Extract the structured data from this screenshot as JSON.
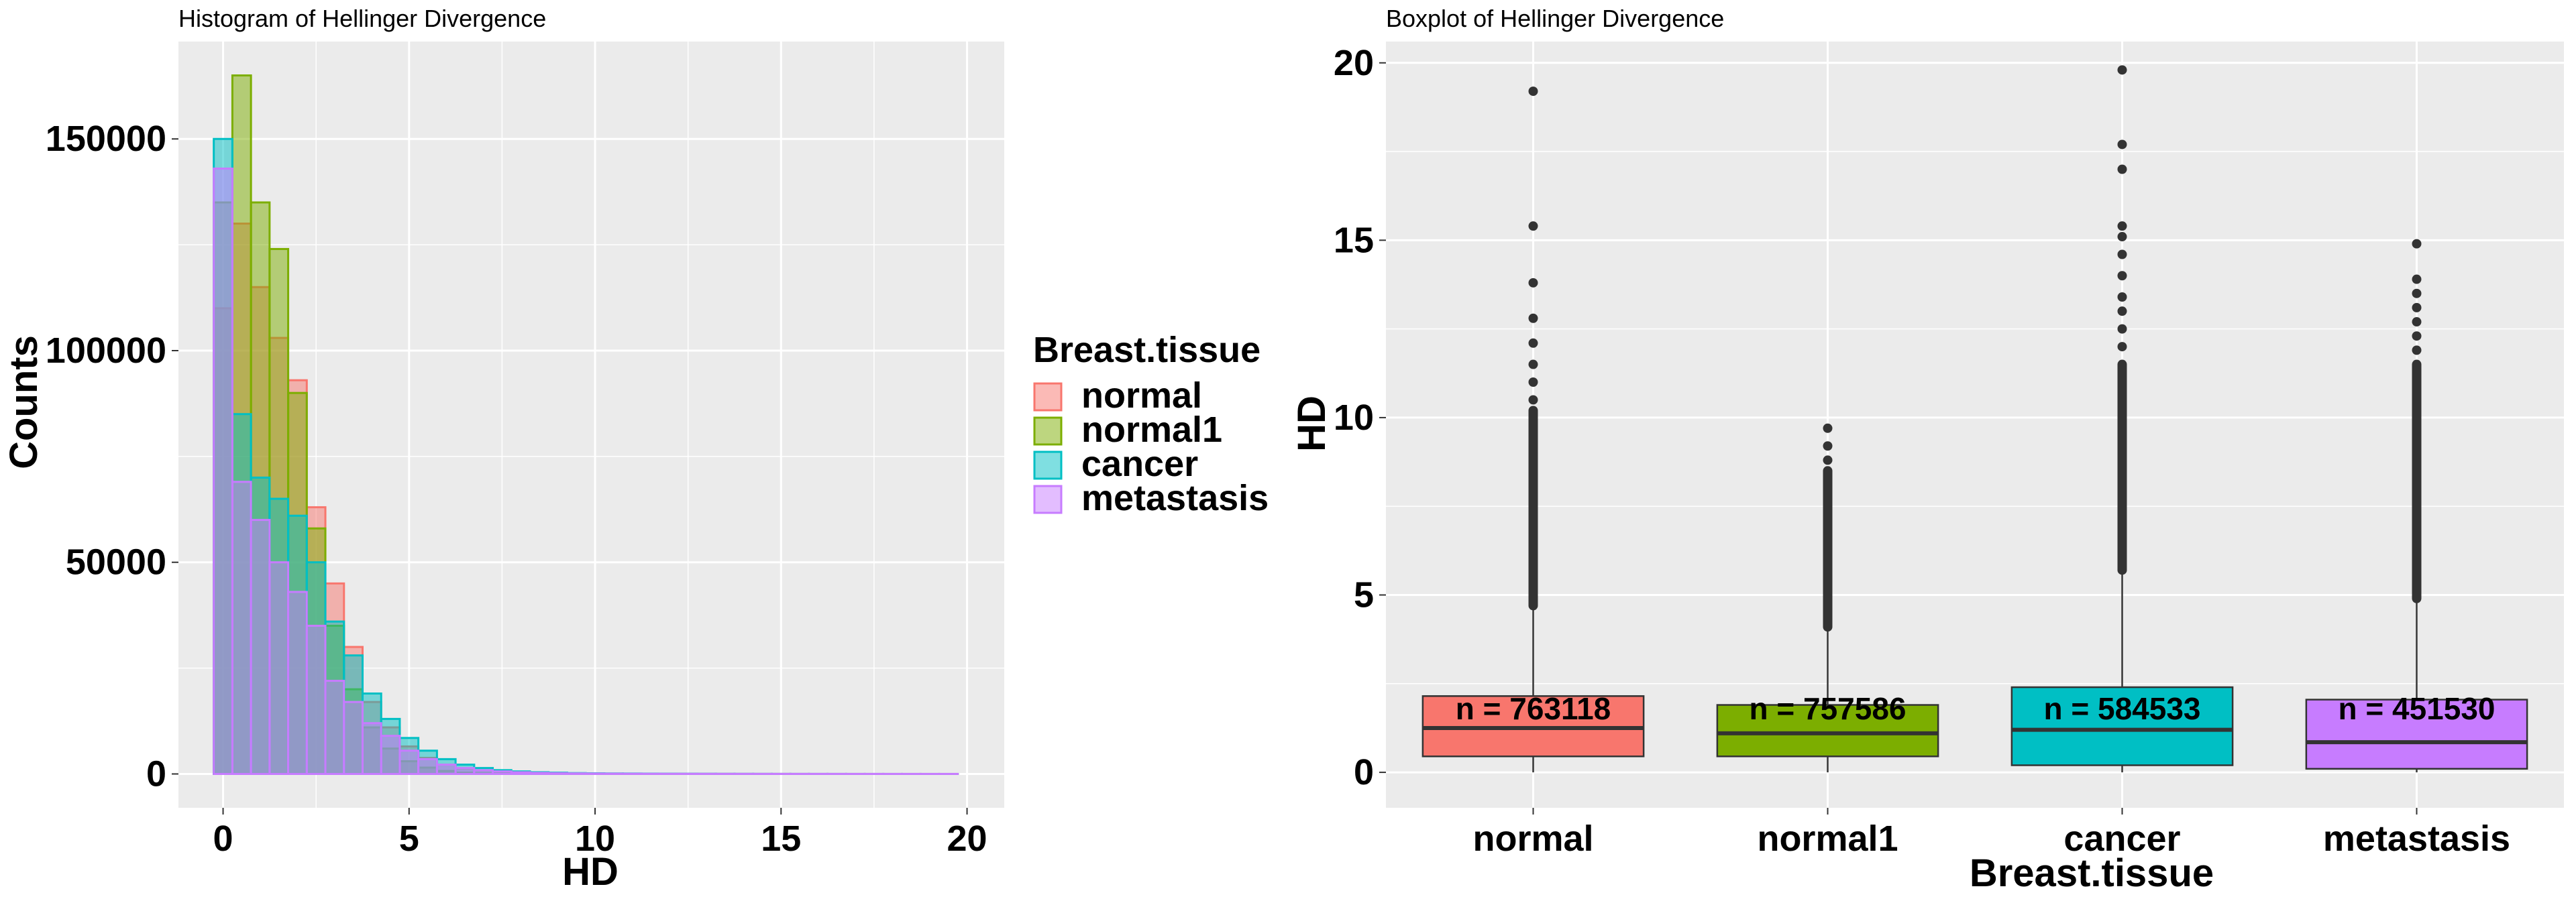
{
  "colors": {
    "normal": "#F8766D",
    "normal1": "#7CAE00",
    "cancer": "#00BFC4",
    "metastasis": "#C77CFF",
    "panel_bg": "#EBEBEB",
    "grid": "#FFFFFF",
    "outlier": "#333333"
  },
  "chart_data": [
    {
      "type": "histogram",
      "title": "Histogram of Hellinger Divergence",
      "xlabel": "HD",
      "ylabel": "Counts",
      "xlim": [
        -1.2,
        21
      ],
      "ylim": [
        -8000,
        173000
      ],
      "xticks": [
        0,
        5,
        10,
        15,
        20
      ],
      "xtick_labels": [
        "0",
        "5",
        "10",
        "15",
        "20"
      ],
      "yticks": [
        0,
        50000,
        100000,
        150000
      ],
      "ytick_labels": [
        "0",
        "50000",
        "100000",
        "150000"
      ],
      "grid": true,
      "bin_width": 0.5,
      "bin_centers": [
        0,
        0.5,
        1,
        1.5,
        2,
        2.5,
        3,
        3.5,
        4,
        4.5,
        5,
        5.5,
        6,
        6.5,
        7,
        7.5,
        8,
        8.5,
        9,
        9.5,
        10,
        10.5,
        11,
        11.5,
        12,
        12.5,
        13,
        13.5,
        14,
        14.5,
        15,
        15.5,
        16,
        16.5,
        17,
        17.5,
        18,
        18.5,
        19,
        19.5
      ],
      "legend": {
        "title": "Breast.tissue",
        "position": "right",
        "entries": [
          "normal",
          "normal1",
          "cancer",
          "metastasis"
        ]
      },
      "series": [
        {
          "name": "normal",
          "values": [
            110000,
            130000,
            115000,
            103000,
            93000,
            63000,
            45000,
            30000,
            17000,
            11000,
            6500,
            3800,
            2200,
            1300,
            800,
            500,
            300,
            200,
            150,
            120,
            100,
            80,
            60,
            50,
            40,
            30,
            25,
            20,
            15,
            12,
            10,
            8,
            6,
            5,
            4,
            3,
            2,
            2,
            1,
            1
          ]
        },
        {
          "name": "normal1",
          "values": [
            135000,
            165000,
            135000,
            124000,
            90000,
            58000,
            35000,
            20000,
            11000,
            6000,
            3000,
            1500,
            700,
            300,
            150,
            80,
            40,
            20,
            10,
            5,
            0,
            0,
            0,
            0,
            0,
            0,
            0,
            0,
            0,
            0,
            0,
            0,
            0,
            0,
            0,
            0,
            0,
            0,
            0,
            0
          ]
        },
        {
          "name": "cancer",
          "values": [
            150000,
            85000,
            70000,
            65000,
            61000,
            50000,
            36000,
            28000,
            19000,
            13000,
            8500,
            5500,
            3500,
            2200,
            1400,
            900,
            600,
            400,
            300,
            200,
            150,
            120,
            100,
            80,
            60,
            50,
            40,
            30,
            25,
            20,
            15,
            12,
            10,
            8,
            6,
            5,
            4,
            3,
            2,
            1
          ]
        },
        {
          "name": "metastasis",
          "values": [
            143000,
            69000,
            60000,
            50000,
            43000,
            35000,
            22000,
            17000,
            12000,
            9000,
            5500,
            3500,
            2200,
            1400,
            900,
            600,
            400,
            250,
            180,
            120,
            90,
            70,
            50,
            40,
            30,
            25,
            20,
            15,
            12,
            10,
            8,
            6,
            5,
            4,
            3,
            2,
            2,
            1,
            1,
            1
          ]
        }
      ]
    },
    {
      "type": "boxplot",
      "title": "Boxplot of Hellinger Divergence",
      "xlabel": "Breast.tissue",
      "ylabel": "HD",
      "ylim": [
        -1,
        20.6
      ],
      "yticks": [
        0,
        5,
        10,
        15,
        20
      ],
      "ytick_labels": [
        "0",
        "5",
        "10",
        "15",
        "20"
      ],
      "grid": true,
      "categories": [
        "normal",
        "normal1",
        "cancer",
        "metastasis"
      ],
      "boxes": [
        {
          "category": "normal",
          "whisker_low": 0,
          "q1": 0.45,
          "median": 1.25,
          "q3": 2.15,
          "whisker_high": 4.7,
          "outlier_min": 4.7,
          "outlier_max_dense": 10.2,
          "outliers": [
            10.5,
            11.0,
            11.5,
            12.1,
            12.8,
            13.8,
            15.4,
            19.2
          ],
          "label": "n = 763118"
        },
        {
          "category": "normal1",
          "whisker_low": 0,
          "q1": 0.45,
          "median": 1.1,
          "q3": 1.9,
          "whisker_high": 4.1,
          "outlier_min": 4.1,
          "outlier_max_dense": 8.5,
          "outliers": [
            8.8,
            9.2,
            9.7
          ],
          "label": "n = 757586"
        },
        {
          "category": "cancer",
          "whisker_low": 0,
          "q1": 0.2,
          "median": 1.2,
          "q3": 2.4,
          "whisker_high": 5.7,
          "outlier_min": 5.7,
          "outlier_max_dense": 11.5,
          "outliers": [
            12.0,
            12.5,
            13.0,
            13.4,
            14.0,
            14.6,
            15.1,
            15.4,
            17.0,
            17.7,
            19.8
          ],
          "label": "n = 584533"
        },
        {
          "category": "metastasis",
          "whisker_low": 0,
          "q1": 0.1,
          "median": 0.85,
          "q3": 2.05,
          "whisker_high": 4.9,
          "outlier_min": 4.9,
          "outlier_max_dense": 11.5,
          "outliers": [
            11.9,
            12.3,
            12.7,
            13.1,
            13.5,
            13.9,
            14.9
          ],
          "label": "n = 451530"
        }
      ],
      "label_y": 1.8
    }
  ]
}
